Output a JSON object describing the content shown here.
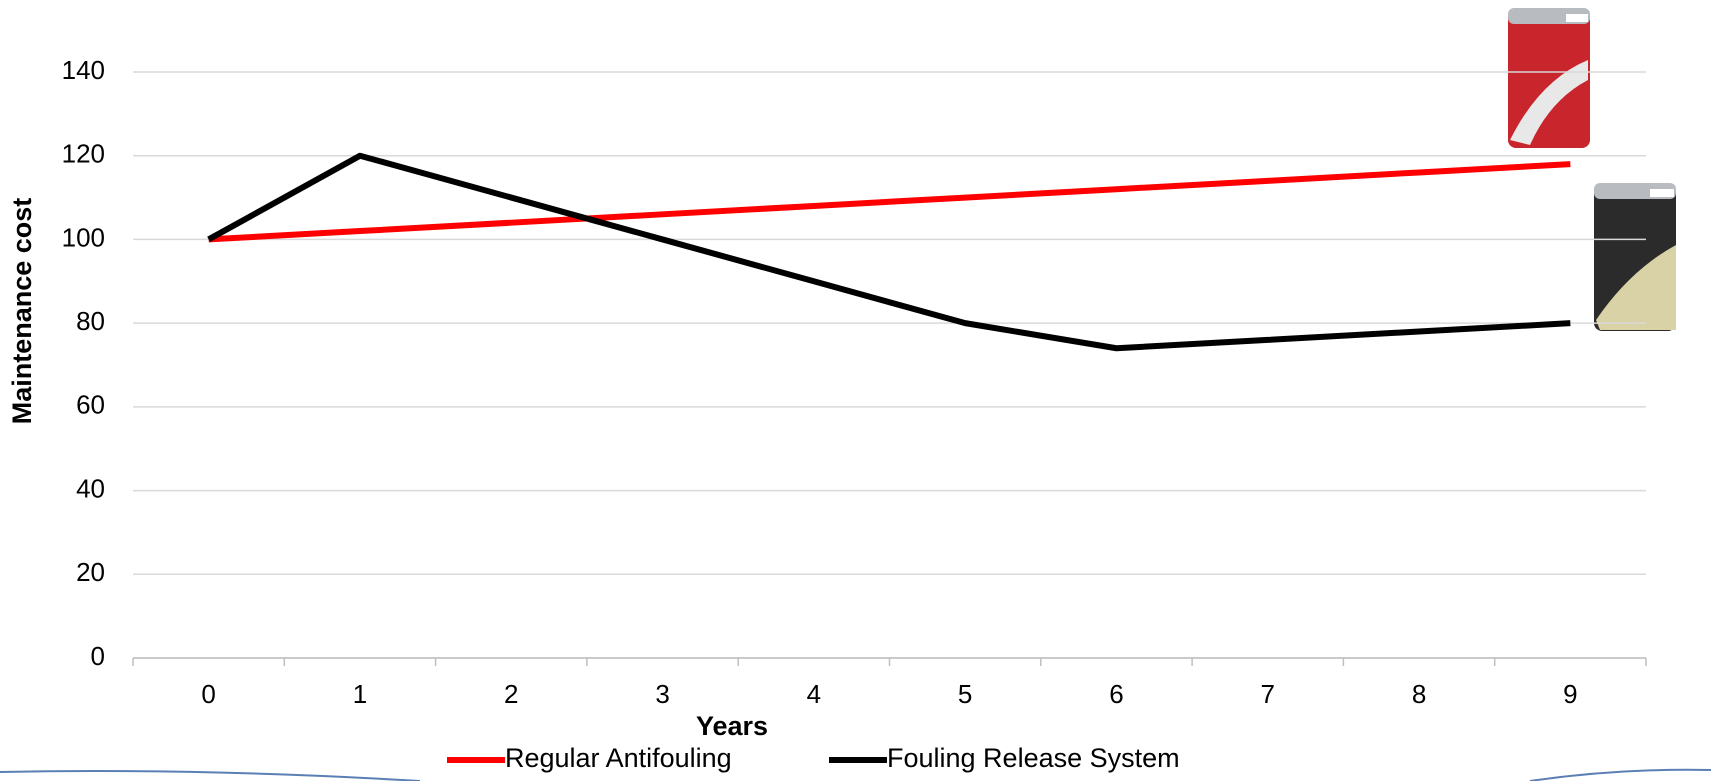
{
  "chart_data": {
    "type": "line",
    "x_label": "Years",
    "y_label": "Maintenance cost",
    "categories": [
      "0",
      "1",
      "2",
      "3",
      "4",
      "5",
      "6",
      "7",
      "8",
      "9"
    ],
    "series": [
      {
        "name": "Regular Antifouling",
        "color": "#ff0000",
        "values": [
          100,
          102,
          104,
          106,
          108,
          110,
          112,
          114,
          116,
          118
        ]
      },
      {
        "name": "Fouling Release System",
        "color": "#000000",
        "values": [
          100,
          120,
          110,
          100,
          90,
          80,
          74,
          76,
          78,
          80
        ]
      }
    ],
    "ylim": [
      0,
      140
    ],
    "yticks": [
      0,
      20,
      40,
      60,
      80,
      100,
      120,
      140
    ],
    "grid": true,
    "legend": "bottom"
  }
}
